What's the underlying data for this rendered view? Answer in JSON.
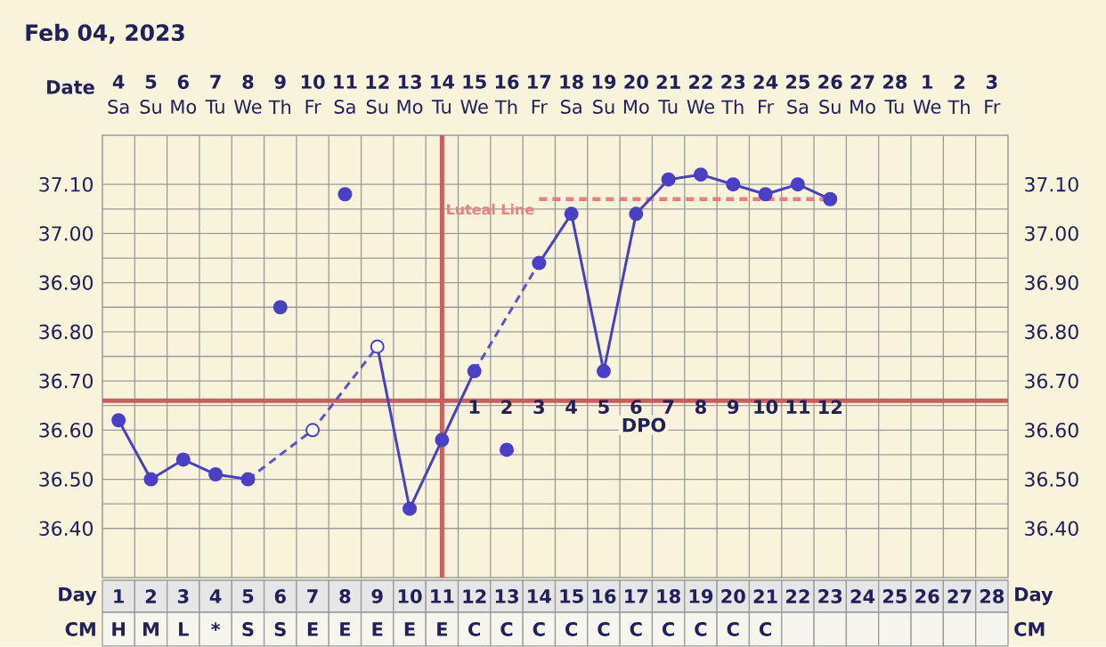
{
  "chart_data": {
    "type": "line",
    "title": "Feb 04, 2023",
    "xlabel": "Day",
    "categories": [
      "1",
      "2",
      "3",
      "4",
      "5",
      "6",
      "7",
      "8",
      "9",
      "10",
      "11",
      "12",
      "13",
      "14",
      "15",
      "16",
      "17",
      "18",
      "19",
      "20",
      "21",
      "22",
      "23",
      "24",
      "25",
      "26",
      "27",
      "28"
    ],
    "ylim": [
      36.3,
      37.2
    ],
    "yticks": [
      {
        "value": 36.4,
        "label": "36.40"
      },
      {
        "value": 36.5,
        "label": "36.50"
      },
      {
        "value": 36.6,
        "label": "36.60"
      },
      {
        "value": 36.7,
        "label": "36.70"
      },
      {
        "value": 36.8,
        "label": "36.80"
      },
      {
        "value": 36.9,
        "label": "36.90"
      },
      {
        "value": 37.0,
        "label": "37.00"
      },
      {
        "value": 37.1,
        "label": "37.10"
      }
    ],
    "y2lim": [
      36.3,
      37.2
    ],
    "y2ticks": [
      {
        "value": 36.4,
        "label": "36.40"
      },
      {
        "value": 36.5,
        "label": "36.50"
      },
      {
        "value": 36.6,
        "label": "36.60"
      },
      {
        "value": 36.7,
        "label": "36.70"
      },
      {
        "value": 36.8,
        "label": "36.80"
      },
      {
        "value": 36.9,
        "label": "36.90"
      },
      {
        "value": 37.0,
        "label": "37.00"
      },
      {
        "value": 37.1,
        "label": "37.10"
      }
    ],
    "grid": true,
    "series": [
      {
        "name": "Luteal Line",
        "type": "line",
        "color": "#e88080",
        "line_style": "dashed",
        "marker": "none",
        "x": [
          "14",
          "23"
        ],
        "values": [
          37.07,
          37.07
        ]
      },
      {
        "color": "#4a3fc8",
        "line_style": "solid",
        "marker": "none",
        "values": [
          36.62,
          36.5,
          36.54,
          36.51,
          36.5,
          null,
          null,
          null,
          36.77,
          36.44,
          36.58,
          36.72,
          null,
          36.94,
          37.04,
          36.72,
          37.04,
          37.11,
          37.12,
          37.1,
          37.08,
          37.1,
          37.07,
          null,
          null,
          null,
          null,
          null
        ]
      },
      {
        "type": "line",
        "color": "#5b52d4",
        "line_style": "dashed",
        "marker": "none",
        "x": [
          "5",
          "7",
          "9"
        ],
        "values": [
          36.5,
          36.6,
          36.77
        ]
      },
      {
        "type": "line",
        "color": "#5b52d4",
        "line_style": "dashed",
        "marker": "none",
        "x": [
          "12",
          "14"
        ],
        "values": [
          36.72,
          36.94
        ]
      },
      {
        "type": "scatter",
        "color": "#4a3fc8",
        "marker": "circle",
        "x": [
          "1",
          "2",
          "3",
          "4",
          "5",
          "6",
          "8",
          "10",
          "11",
          "12",
          "13",
          "14",
          "15",
          "16",
          "17",
          "18",
          "19",
          "20",
          "21",
          "22",
          "23"
        ],
        "values": [
          36.62,
          36.5,
          36.54,
          36.51,
          36.5,
          36.85,
          37.08,
          36.44,
          36.58,
          36.72,
          36.56,
          36.94,
          37.04,
          36.72,
          37.04,
          37.11,
          37.12,
          37.1,
          37.08,
          37.1,
          37.07
        ]
      },
      {
        "type": "scatter",
        "color": "#ffffff",
        "marker": "circle",
        "x": [
          "7",
          "9"
        ],
        "values": [
          36.6,
          36.77
        ]
      }
    ],
    "ref_lines": [
      {
        "axis": "y",
        "value": 36.66,
        "color": "#cd5c5c"
      },
      {
        "axis": "x",
        "value": "11",
        "color": "#cd5c5c"
      }
    ],
    "annotations": [
      "Date",
      "4",
      "5",
      "6",
      "7",
      "8",
      "9",
      "10",
      "11",
      "12",
      "13",
      "14",
      "15",
      "16",
      "17",
      "18",
      "19",
      "20",
      "21",
      "22",
      "23",
      "24",
      "25",
      "26",
      "27",
      "28",
      "1",
      "2",
      "3",
      "Sa",
      "Su",
      "Mo",
      "Tu",
      "We",
      "Th",
      "Fr",
      "Sa",
      "Su",
      "Mo",
      "Tu",
      "We",
      "Th",
      "Fr",
      "Sa",
      "Su",
      "Mo",
      "Tu",
      "We",
      "Th",
      "Fr",
      "Sa",
      "Su",
      "Mo",
      "Tu",
      "We",
      "Th",
      "Fr",
      "CM",
      "H",
      "M",
      "L",
      "*",
      "S",
      "S",
      "E",
      "E",
      "E",
      "E",
      "E",
      "C",
      "C",
      "C",
      "C",
      "C",
      "C",
      "C",
      "C",
      "C",
      "C",
      "DPO",
      "1",
      "2",
      "3",
      "4",
      "5",
      "6",
      "7",
      "8",
      "9",
      "10",
      "11",
      "12"
    ]
  }
}
